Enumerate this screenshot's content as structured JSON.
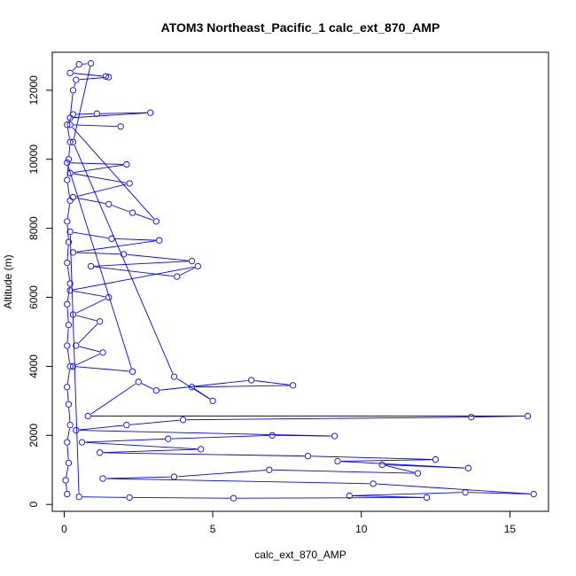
{
  "chart_data": {
    "type": "scatter",
    "title": "ATOM3 Northeast_Pacific_1 calc_ext_870_AMP",
    "xlabel": "calc_ext_870_AMP",
    "ylabel": "Altitude (m)",
    "xlim": [
      -0.4,
      16.3
    ],
    "ylim": [
      -200,
      13100
    ],
    "x_ticks": [
      0,
      5,
      10,
      15
    ],
    "y_ticks": [
      0,
      2000,
      4000,
      6000,
      8000,
      10000,
      12000
    ],
    "grid": false,
    "legend": "none",
    "style": "points connected by lines (type='b')",
    "series_color": "#0000ff",
    "series": [
      {
        "points": [
          [
            0.1,
            300
          ],
          [
            0.05,
            700
          ],
          [
            0.15,
            1200
          ],
          [
            0.1,
            1800
          ],
          [
            0.2,
            2300
          ],
          [
            0.15,
            2900
          ],
          [
            0.1,
            3400
          ],
          [
            0.2,
            4000
          ],
          [
            0.1,
            4600
          ],
          [
            0.15,
            5200
          ],
          [
            0.1,
            5800
          ],
          [
            0.2,
            6400
          ],
          [
            0.1,
            7000
          ],
          [
            0.15,
            7600
          ],
          [
            0.1,
            8200
          ],
          [
            0.2,
            8800
          ],
          [
            0.1,
            9400
          ],
          [
            0.15,
            10000
          ],
          [
            0.2,
            10500
          ],
          [
            0.1,
            11000
          ],
          [
            0.3,
            11300
          ],
          [
            1.1,
            11320
          ],
          [
            2.9,
            11350
          ],
          [
            0.2,
            11200
          ],
          [
            0.3,
            12000
          ],
          [
            0.4,
            12300
          ],
          [
            1.5,
            12380
          ],
          [
            1.4,
            12400
          ],
          [
            0.2,
            12500
          ],
          [
            0.5,
            12750
          ],
          [
            0.9,
            12780
          ],
          [
            0.3,
            10500
          ],
          [
            3.7,
            3700
          ],
          [
            5.0,
            3000
          ],
          [
            4.3,
            3400
          ],
          [
            7.7,
            3450
          ],
          [
            6.3,
            3600
          ],
          [
            3.1,
            3300
          ],
          [
            2.5,
            3550
          ],
          [
            0.8,
            2560
          ],
          [
            15.6,
            2560
          ],
          [
            13.7,
            2530
          ],
          [
            4.0,
            2450
          ],
          [
            2.1,
            2300
          ],
          [
            0.4,
            2150
          ],
          [
            9.1,
            1980
          ],
          [
            7.0,
            2000
          ],
          [
            3.5,
            1900
          ],
          [
            0.6,
            1800
          ],
          [
            4.6,
            1600
          ],
          [
            1.2,
            1500
          ],
          [
            8.2,
            1400
          ],
          [
            12.5,
            1300
          ],
          [
            9.2,
            1250
          ],
          [
            13.6,
            1050
          ],
          [
            10.7,
            1150
          ],
          [
            11.9,
            900
          ],
          [
            6.9,
            1000
          ],
          [
            3.7,
            800
          ],
          [
            1.3,
            750
          ],
          [
            10.4,
            600
          ],
          [
            15.8,
            300
          ],
          [
            13.5,
            350
          ],
          [
            9.6,
            250
          ],
          [
            12.2,
            200
          ],
          [
            5.7,
            180
          ],
          [
            2.2,
            200
          ],
          [
            0.5,
            220
          ],
          [
            0.2,
            7900
          ],
          [
            1.6,
            7700
          ],
          [
            3.2,
            7650
          ],
          [
            0.3,
            7300
          ],
          [
            2.0,
            7250
          ],
          [
            4.3,
            7050
          ],
          [
            0.9,
            6900
          ],
          [
            3.8,
            6600
          ],
          [
            4.5,
            6900
          ],
          [
            0.2,
            6200
          ],
          [
            1.5,
            6000
          ],
          [
            0.3,
            5500
          ],
          [
            1.2,
            5300
          ],
          [
            0.4,
            4600
          ],
          [
            1.3,
            4400
          ],
          [
            0.3,
            4000
          ],
          [
            2.3,
            3850
          ],
          [
            0.1,
            9900
          ],
          [
            2.1,
            9850
          ],
          [
            0.2,
            9600
          ],
          [
            2.2,
            9300
          ],
          [
            0.3,
            8900
          ],
          [
            1.5,
            8700
          ],
          [
            2.3,
            8450
          ],
          [
            3.1,
            8200
          ],
          [
            0.2,
            11000
          ],
          [
            1.9,
            10950
          ]
        ]
      }
    ]
  }
}
